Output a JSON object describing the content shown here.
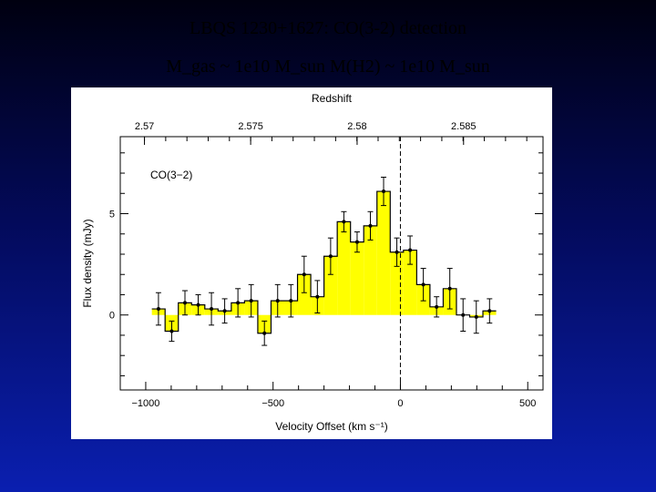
{
  "slide": {
    "title_line1": "LBQS 1230+1627: CO(3-2) detection",
    "title_line2": "M_gas ~ 1e10 M_sun    M(H2) ~ 1e10 M_sun"
  },
  "colors": {
    "fill": "#ffff00",
    "line": "#000000",
    "background_top": "#000010",
    "background_bottom": "#0a1fb0"
  },
  "chart_data": {
    "type": "bar",
    "style": "histogram-step",
    "xlabel": "Velocity Offset (km s⁻¹)",
    "ylabel": "Flux density (mJy)",
    "top_axis_label": "Redshift",
    "annotation": "CO(3−2)",
    "xlim": [
      -1100,
      560
    ],
    "ylim": [
      -3.7,
      8.8
    ],
    "x_ticks": [
      -1000,
      -500,
      0,
      500
    ],
    "x_tick_labels": [
      "−1000",
      "−500",
      "0",
      "500"
    ],
    "y_ticks": [
      0,
      5
    ],
    "y_tick_labels": [
      "0",
      "5"
    ],
    "top_ticks": [
      2.57,
      2.575,
      2.58,
      2.585
    ],
    "top_tick_labels": [
      "2.57",
      "2.575",
      "2.58",
      "2.585"
    ],
    "top_tick_velocity": [
      -1005,
      -588,
      -170,
      248
    ],
    "reference_line_x": 0,
    "bin_width": 52,
    "bins": [
      {
        "x": -950,
        "y": 0.3,
        "err": 0.8
      },
      {
        "x": -898,
        "y": -0.8,
        "err": 0.5
      },
      {
        "x": -846,
        "y": 0.6,
        "err": 0.6
      },
      {
        "x": -794,
        "y": 0.5,
        "err": 0.5
      },
      {
        "x": -742,
        "y": 0.3,
        "err": 0.8
      },
      {
        "x": -690,
        "y": 0.2,
        "err": 0.6
      },
      {
        "x": -638,
        "y": 0.6,
        "err": 0.7
      },
      {
        "x": -586,
        "y": 0.7,
        "err": 0.8
      },
      {
        "x": -534,
        "y": -0.9,
        "err": 0.6
      },
      {
        "x": -482,
        "y": 0.7,
        "err": 0.8
      },
      {
        "x": -430,
        "y": 0.7,
        "err": 0.8
      },
      {
        "x": -378,
        "y": 2.0,
        "err": 0.9
      },
      {
        "x": -326,
        "y": 0.9,
        "err": 0.8
      },
      {
        "x": -274,
        "y": 2.9,
        "err": 0.9
      },
      {
        "x": -222,
        "y": 4.6,
        "err": 0.5
      },
      {
        "x": -170,
        "y": 3.6,
        "err": 0.5
      },
      {
        "x": -118,
        "y": 4.4,
        "err": 0.7
      },
      {
        "x": -66,
        "y": 6.1,
        "err": 0.7
      },
      {
        "x": -14,
        "y": 3.1,
        "err": 0.7
      },
      {
        "x": 38,
        "y": 3.2,
        "err": 0.7
      },
      {
        "x": 90,
        "y": 1.5,
        "err": 0.8
      },
      {
        "x": 142,
        "y": 0.4,
        "err": 0.5
      },
      {
        "x": 194,
        "y": 1.3,
        "err": 1.0
      },
      {
        "x": 246,
        "y": 0.0,
        "err": 0.8
      },
      {
        "x": 298,
        "y": -0.1,
        "err": 0.8
      },
      {
        "x": 350,
        "y": 0.2,
        "err": 0.6
      }
    ]
  }
}
